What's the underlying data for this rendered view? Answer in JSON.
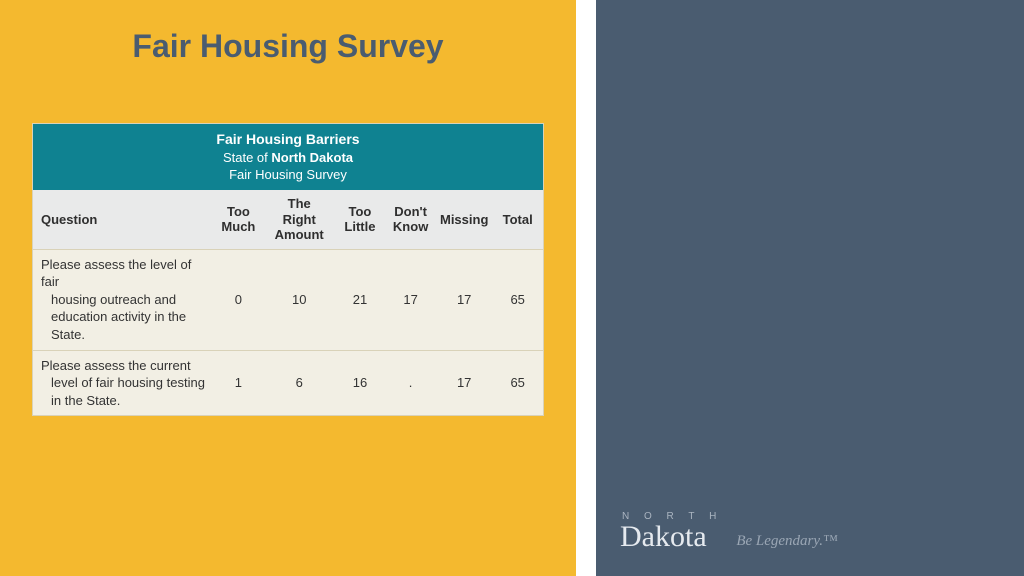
{
  "colors": {
    "main_bg": "#f4b92f",
    "side_bg": "#4a5c70",
    "title_color": "#4a5c70",
    "table_header_bg": "#0f8291",
    "table_header_text": "#ffffff",
    "col_header_bg": "#e9eaea",
    "col_header_text": "#2f2f2f",
    "row_bg": "#f2efe4",
    "row_text": "#333333",
    "row_border": "#d9d2b8"
  },
  "title": "Fair Housing Survey",
  "table_header": {
    "line1": "Fair Housing Barriers",
    "line2_prefix": "State of ",
    "line2_bold": "North Dakota",
    "line3": "Fair Housing Survey"
  },
  "columns": {
    "question": "Question",
    "too_much": "Too Much",
    "right_amount": "The Right Amount",
    "too_little": "Too Little",
    "dont_know": "Don't Know",
    "missing": "Missing",
    "total": "Total"
  },
  "rows": [
    {
      "question_first": "Please assess the level of fair",
      "question_rest": "housing outreach and education activity in the State.",
      "too_much": "0",
      "right_amount": "10",
      "too_little": "21",
      "dont_know": "17",
      "missing": "17",
      "total": "65"
    },
    {
      "question_first": "Please assess the current",
      "question_rest": "level of fair housing testing in the State.",
      "too_much": "1",
      "right_amount": "6",
      "too_little": "16",
      "dont_know": ".",
      "missing": "17",
      "total": "65"
    }
  ],
  "brand": {
    "north": "N O R T H",
    "dakota": "Dakota",
    "tagline": "Be Legendary.™"
  },
  "col_widths": {
    "question": "36%",
    "too_much": "10%",
    "right_amount": "14%",
    "too_little": "10%",
    "dont_know": "10%",
    "missing": "10%",
    "total": "10%"
  }
}
